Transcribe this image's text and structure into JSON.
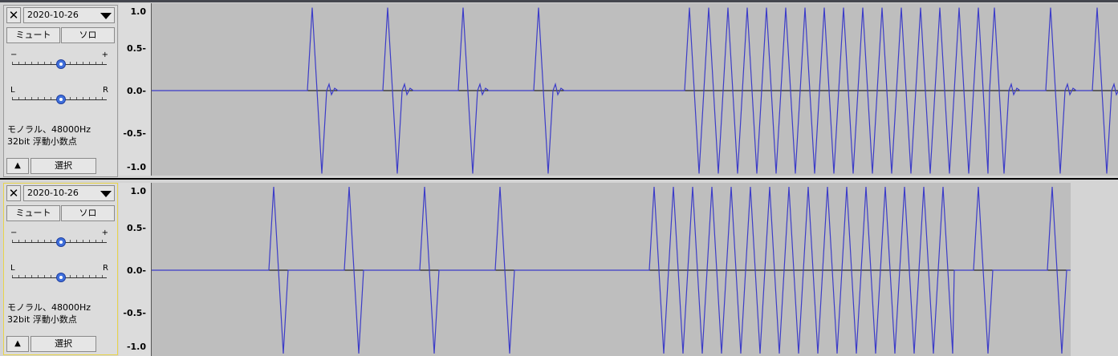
{
  "tracks": [
    {
      "name": "2020-10-26",
      "mute_label": "ミュート",
      "solo_label": "ソロ",
      "gain_minus": "−",
      "gain_plus": "+",
      "pan_left": "L",
      "pan_right": "R",
      "info_line1": "モノラル、48000Hz",
      "info_line2": "32bit 浮動小数点",
      "select_label": "選択",
      "collapse_icon": "▲",
      "close_icon": "✕",
      "scale": [
        "1.0",
        "0.5-",
        "0.0-",
        "-0.5-",
        "-1.0"
      ],
      "waveform_color": "#3c3cc8",
      "background_color": "#bebebe"
    },
    {
      "name": "2020-10-26",
      "mute_label": "ミュート",
      "solo_label": "ソロ",
      "gain_minus": "−",
      "gain_plus": "+",
      "pan_left": "L",
      "pan_right": "R",
      "info_line1": "モノラル、48000Hz",
      "info_line2": "32bit 浮動小数点",
      "select_label": "選択",
      "collapse_icon": "▲",
      "close_icon": "✕",
      "scale": [
        "1.0",
        "0.5-",
        "0.0-",
        "-0.5-",
        "-1.0"
      ],
      "waveform_color": "#3c3cc8",
      "background_color": "#bebebe"
    }
  ]
}
